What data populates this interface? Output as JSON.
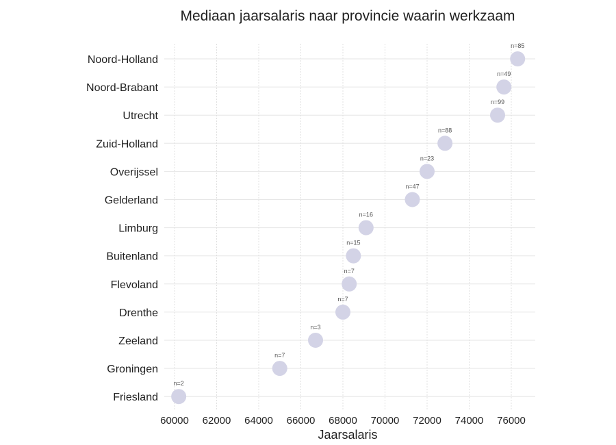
{
  "chart_data": {
    "type": "scatter",
    "title": "Mediaan jaarsalaris naar provincie waarin werkzaam",
    "xlabel": "Jaarsalaris",
    "ylabel": "",
    "xlim": [
      60000,
      76800
    ],
    "xticks": [
      60000,
      62000,
      64000,
      66000,
      68000,
      70000,
      72000,
      74000,
      76000
    ],
    "grid": true,
    "legend": "none",
    "marker_color": "#d3d3e6",
    "categories": [
      "Noord-Holland",
      "Noord-Brabant",
      "Utrecht",
      "Zuid-Holland",
      "Overijssel",
      "Gelderland",
      "Limburg",
      "Buitenland",
      "Flevoland",
      "Drenthe",
      "Zeeland",
      "Groningen",
      "Friesland"
    ],
    "values": [
      76300,
      75650,
      75350,
      72850,
      72000,
      71300,
      69100,
      68500,
      68300,
      68000,
      66700,
      65000,
      60200
    ],
    "annotations": [
      "n=85",
      "n=49",
      "n=99",
      "n=88",
      "n=23",
      "n=47",
      "n=16",
      "n=15",
      "n=7",
      "n=7",
      "n=3",
      "n=7",
      "n=2"
    ]
  }
}
